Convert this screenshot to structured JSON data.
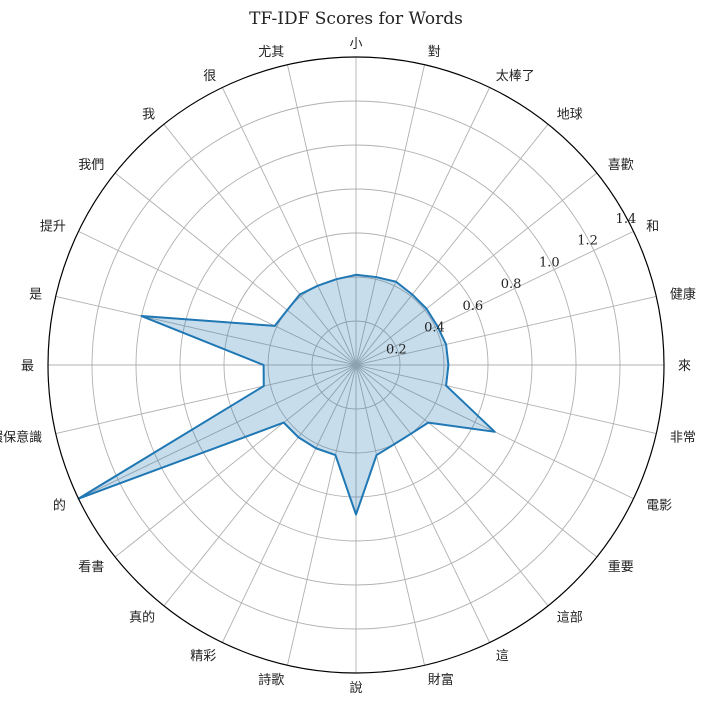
{
  "chart_data": {
    "type": "radar",
    "title": "TF-IDF Scores for Words",
    "categories": [
      "來",
      "健康",
      "和",
      "喜歡",
      "地球",
      "太棒了",
      "對",
      "小",
      "尤其",
      "很",
      "我",
      "我們",
      "提升",
      "是",
      "最",
      "環保意識",
      "的",
      "看書",
      "真的",
      "精彩",
      "詩歌",
      "說",
      "財富",
      "這",
      "這部",
      "重要",
      "電影",
      "非常"
    ],
    "series": [
      {
        "values": [
          0.42,
          0.42,
          0.41,
          0.41,
          0.41,
          0.42,
          0.41,
          0.41,
          0.4,
          0.4,
          0.41,
          0.4,
          0.41,
          1.0,
          0.42,
          0.43,
          1.4,
          0.42,
          0.42,
          0.42,
          0.42,
          0.68,
          0.42,
          0.4,
          0.4,
          0.42,
          0.7,
          0.42
        ]
      }
    ],
    "rlim": [
      0,
      1.4
    ],
    "rticks": [
      "0.2",
      "0.4",
      "0.6",
      "0.8",
      "1.0",
      "1.2",
      "1.4"
    ],
    "rtick_values": [
      0.2,
      0.4,
      0.6,
      0.8,
      1.0,
      1.2,
      1.4
    ],
    "grid": true,
    "colors": {
      "line": "#1f77b4",
      "fill": "#1f77b4",
      "grid": "#b0b0b0"
    }
  }
}
